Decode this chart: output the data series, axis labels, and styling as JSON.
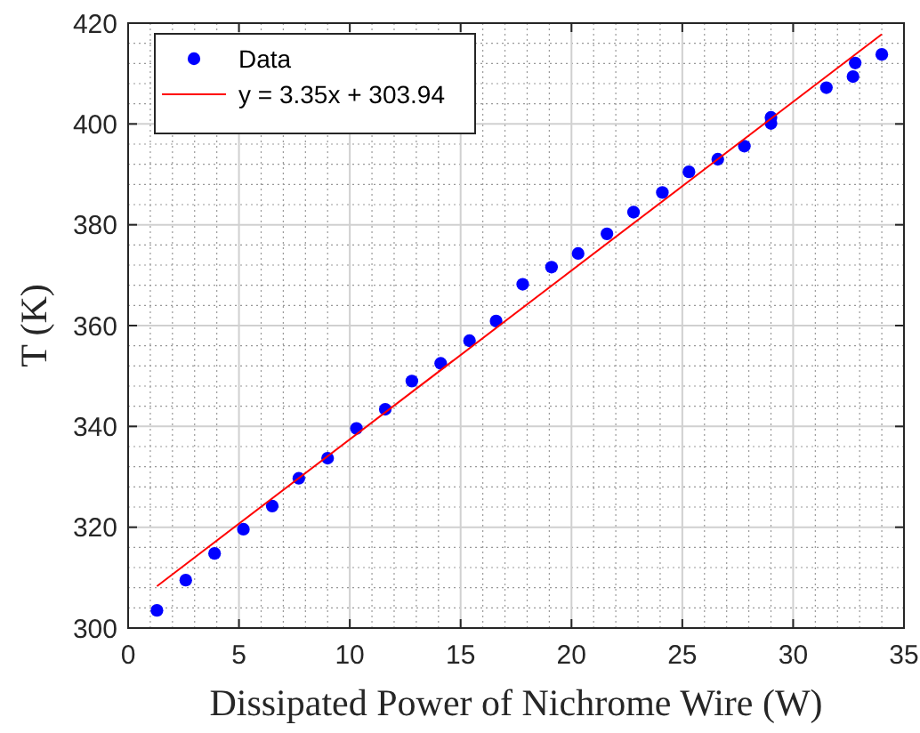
{
  "chart_data": {
    "type": "scatter",
    "xlabel": "Dissipated Power of Nichrome Wire (W)",
    "ylabel": "T (K)",
    "xlim": [
      0,
      35
    ],
    "xticks": [
      0,
      5,
      10,
      15,
      20,
      25,
      30,
      35
    ],
    "ylim": [
      300,
      420
    ],
    "yticks": [
      300,
      320,
      340,
      360,
      380,
      400,
      420
    ],
    "grid": true,
    "legend": "top left",
    "series": [
      {
        "name": "Data",
        "marker": "circle",
        "color": "#0000ff",
        "x": [
          1.3,
          2.6,
          3.9,
          5.2,
          6.5,
          7.7,
          9.0,
          10.3,
          11.6,
          12.8,
          14.1,
          15.4,
          16.6,
          17.8,
          19.1,
          20.3,
          21.6,
          22.8,
          24.1,
          25.3,
          26.6,
          27.8,
          29.0,
          29.0,
          31.5,
          32.7,
          32.8,
          34.0
        ],
        "values": [
          303.5,
          309.5,
          314.8,
          319.6,
          324.2,
          329.7,
          333.7,
          339.6,
          343.4,
          349,
          352.5,
          357,
          360.9,
          368.2,
          371.6,
          374.3,
          378.2,
          382.5,
          386.4,
          390.5,
          393,
          395.6,
          401.3,
          400.1,
          407.2,
          409.4,
          412.1,
          413.8
        ]
      },
      {
        "name": "y = 3.35x + 303.94",
        "type": "line",
        "marker": "none",
        "color": "#ff0000",
        "x": [
          1.3,
          34.0
        ],
        "values": [
          308.3,
          417.8
        ]
      }
    ]
  }
}
